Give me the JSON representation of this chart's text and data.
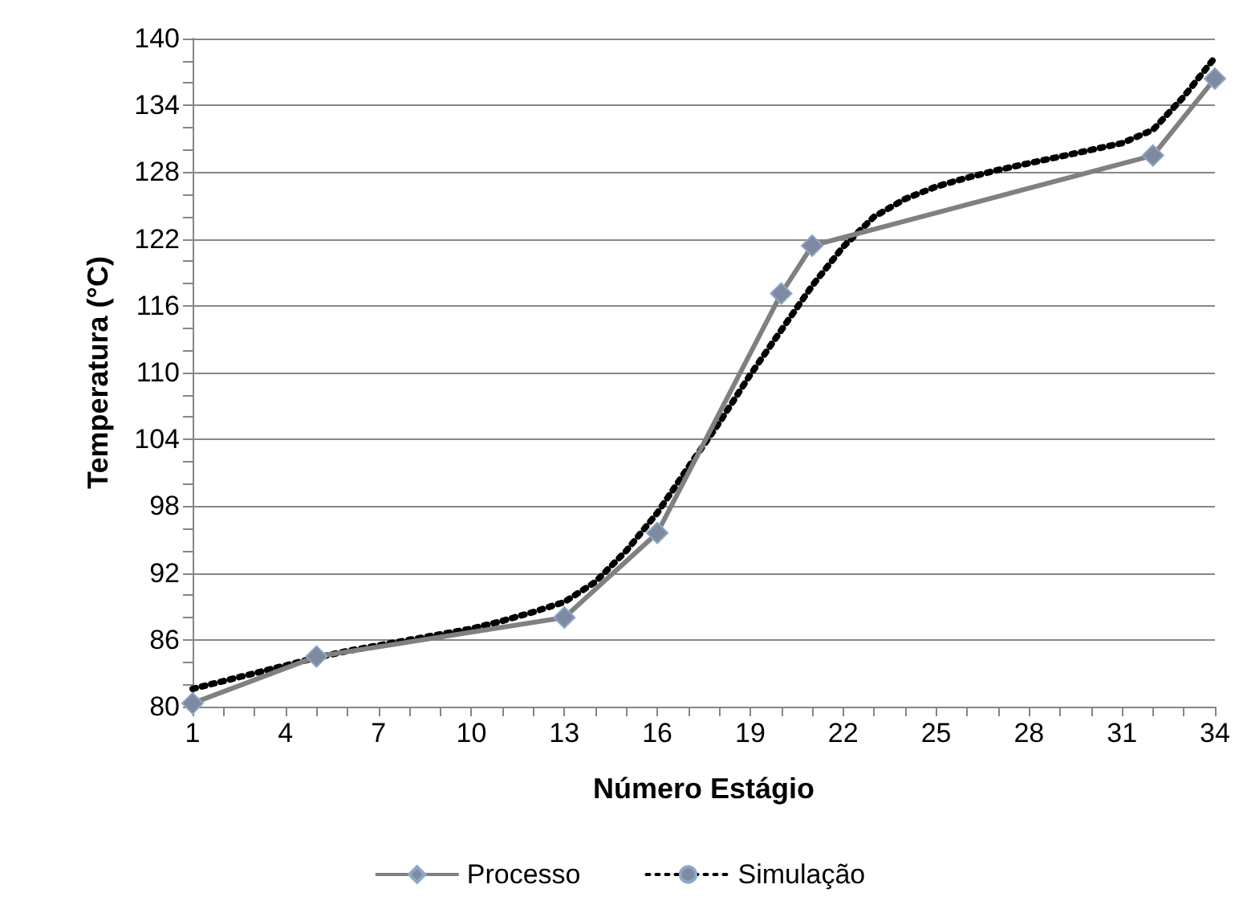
{
  "chart_data": {
    "type": "line",
    "xlabel": "Número Estágio",
    "ylabel": "Temperatura (°C)",
    "xlim": [
      1,
      34
    ],
    "ylim": [
      80,
      140
    ],
    "xticks": [
      1,
      {
        "value": 2,
        "label": null
      },
      {
        "value": 3,
        "label": null
      },
      4,
      {
        "value": 5,
        "label": null
      },
      {
        "value": 6,
        "label": null
      },
      7,
      {
        "value": 8,
        "label": null
      },
      {
        "value": 9,
        "label": null
      },
      10,
      {
        "value": 11,
        "label": null
      },
      {
        "value": 12,
        "label": null
      },
      13,
      {
        "value": 14,
        "label": null
      },
      {
        "value": 15,
        "label": null
      },
      16,
      {
        "value": 17,
        "label": null
      },
      {
        "value": 18,
        "label": null
      },
      19,
      {
        "value": 20,
        "label": null
      },
      {
        "value": 21,
        "label": null
      },
      22,
      {
        "value": 23,
        "label": null
      },
      {
        "value": 24,
        "label": null
      },
      25,
      {
        "value": 26,
        "label": null
      },
      {
        "value": 27,
        "label": null
      },
      28,
      {
        "value": 29,
        "label": null
      },
      {
        "value": 30,
        "label": null
      },
      31,
      {
        "value": 32,
        "label": null
      },
      {
        "value": 33,
        "label": null
      },
      34
    ],
    "yticks": [
      80,
      {
        "value": 82,
        "label": null
      },
      {
        "value": 84,
        "label": null
      },
      86,
      {
        "value": 88,
        "label": null
      },
      {
        "value": 90,
        "label": null
      },
      92,
      {
        "value": 94,
        "label": null
      },
      {
        "value": 96,
        "label": null
      },
      98,
      {
        "value": 100,
        "label": null
      },
      {
        "value": 102,
        "label": null
      },
      104,
      {
        "value": 106,
        "label": null
      },
      {
        "value": 108,
        "label": null
      },
      110,
      {
        "value": 112,
        "label": null
      },
      {
        "value": 114,
        "label": null
      },
      116,
      {
        "value": 118,
        "label": null
      },
      {
        "value": 120,
        "label": null
      },
      122,
      {
        "value": 124,
        "label": null
      },
      {
        "value": 126,
        "label": null
      },
      128,
      {
        "value": 130,
        "label": null
      },
      {
        "value": 132,
        "label": null
      },
      134,
      {
        "value": 136,
        "label": null
      },
      {
        "value": 138,
        "label": null
      },
      140
    ],
    "grid": "y",
    "legend": "bottom",
    "series": [
      {
        "name": "Processo",
        "color": "#808080",
        "marker": "diamond",
        "line_style": "solid",
        "x": [
          1,
          5,
          13,
          16,
          20,
          21,
          32,
          34
        ],
        "values": [
          80.3,
          84.5,
          88,
          95.6,
          117.1,
          121.4,
          129.5,
          136.4
        ]
      },
      {
        "name": "Simulação",
        "color": "#000000",
        "marker": "none",
        "line_style": "dotted",
        "x": [
          1,
          2,
          3,
          4,
          5,
          6,
          7,
          8,
          9,
          10,
          11,
          12,
          13,
          14,
          15,
          16,
          17,
          18,
          19,
          20,
          21,
          22,
          23,
          24,
          25,
          26,
          27,
          28,
          29,
          30,
          31,
          32,
          33,
          34
        ],
        "values": [
          81.6,
          82.3,
          83,
          83.7,
          84.4,
          85,
          85.5,
          86,
          86.5,
          87,
          87.7,
          88.5,
          89.4,
          91.2,
          94,
          97.4,
          101.5,
          105.5,
          109.8,
          113.8,
          117.8,
          121.3,
          124,
          125.6,
          126.7,
          127.5,
          128.2,
          128.8,
          129.4,
          130,
          130.6,
          131.8,
          134.8,
          138.3
        ]
      }
    ]
  }
}
